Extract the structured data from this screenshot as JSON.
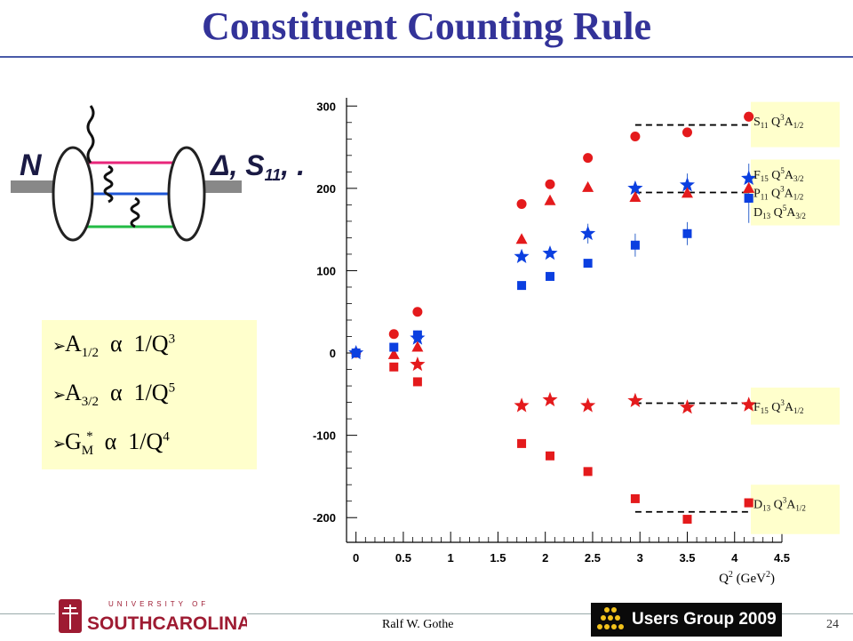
{
  "slide": {
    "title": "Constituent Counting Rule",
    "author": "Ralf W. Gothe",
    "page_number": "24",
    "users_group": "Users Group 2009",
    "logo": {
      "university_text": "UNIVERSITY OF",
      "name_text": "SOUTHCAROLINA."
    }
  },
  "diagram": {
    "left_label": "N",
    "right_label": "Δ, S",
    "right_sub": "11",
    "right_suffix": ", ..."
  },
  "formulas": [
    {
      "sym": "A",
      "sub": "1/2",
      "sup_sym": "",
      "rel": "α",
      "rhs": "1/Q",
      "pow": "3"
    },
    {
      "sym": "A",
      "sub": "3/2",
      "sup_sym": "",
      "rel": "α",
      "rhs": "1/Q",
      "pow": "5"
    },
    {
      "sym": "G",
      "sub": "M",
      "sup_sym": "*",
      "rel": "α",
      "rhs": "1/Q",
      "pow": "4"
    }
  ],
  "colors": {
    "red": "#e41a1c",
    "blue": "#0b3fe0",
    "title": "#333399",
    "box": "#ffffcc"
  },
  "chart_data": {
    "type": "scatter",
    "title": "",
    "xlabel": "Q2 (GeV2)",
    "xlim": [
      -0.1,
      4.5
    ],
    "ylim": [
      -230,
      310
    ],
    "xticks": [
      "0",
      "0.5",
      "1",
      "1.5",
      "2",
      "2.5",
      "3",
      "3.5",
      "4",
      "4.5"
    ],
    "yticks": [
      "300",
      "200",
      "100",
      "0",
      "-100",
      "-200"
    ],
    "series": [
      {
        "name": "S11 Q3A1/2",
        "color": "red",
        "marker": "circle",
        "x": [
          0,
          0.4,
          0.65,
          1.75,
          2.05,
          2.45,
          2.95,
          3.5,
          4.15
        ],
        "y": [
          0,
          23,
          50,
          181,
          205,
          237,
          263,
          268,
          287
        ]
      },
      {
        "name": "F15 Q5A3/2",
        "color": "blue",
        "marker": "star",
        "x": [
          0,
          0.65,
          1.75,
          2.05,
          2.45,
          2.95,
          3.5,
          4.15
        ],
        "y": [
          0,
          18,
          117,
          121,
          145,
          200,
          204,
          212
        ]
      },
      {
        "name": "P11 Q3A1/2",
        "color": "red",
        "marker": "triangle",
        "x": [
          0.4,
          0.65,
          1.75,
          2.05,
          2.45,
          2.95,
          3.5,
          4.15
        ],
        "y": [
          -2,
          7,
          138,
          185,
          201,
          189,
          194,
          200
        ]
      },
      {
        "name": "D13 Q5A3/2",
        "color": "blue",
        "marker": "square",
        "x": [
          0,
          0.4,
          0.65,
          1.75,
          2.05,
          2.45,
          2.95,
          3.5,
          4.15
        ],
        "y": [
          0,
          7,
          22,
          82,
          93,
          109,
          131,
          145,
          188
        ]
      },
      {
        "name": "F15 Q3A1/2",
        "color": "red",
        "marker": "star",
        "x": [
          0.65,
          1.75,
          2.05,
          2.45,
          2.95,
          3.5,
          4.15
        ],
        "y": [
          -14,
          -64,
          -57,
          -64,
          -58,
          -66,
          -63
        ]
      },
      {
        "name": "D13 Q3A1/2",
        "color": "red",
        "marker": "square",
        "x": [
          0.4,
          0.65,
          1.75,
          2.05,
          2.45,
          2.95,
          3.5,
          4.15
        ],
        "y": [
          -17,
          -35,
          -110,
          -125,
          -144,
          -177,
          -202,
          -182
        ]
      }
    ],
    "reference_lines": [
      {
        "y": 277,
        "x": [
          2.95,
          4.15
        ]
      },
      {
        "y": 195,
        "x": [
          2.95,
          4.15
        ]
      },
      {
        "y": -61,
        "x": [
          2.95,
          4.15
        ]
      },
      {
        "y": -193,
        "x": [
          2.95,
          4.15
        ]
      }
    ],
    "labels": [
      {
        "series": "S11 Q3A1/2",
        "text": "S11 Q3A1/2",
        "y": 287,
        "anchor_y": 282
      },
      {
        "series": "F15 Q5A3/2",
        "text": "F15 Q5A3/2",
        "y": 217
      },
      {
        "series": "P11 Q3A1/2",
        "text": "P11 Q3A1/2",
        "y": 195
      },
      {
        "series": "D13 Q5A3/2",
        "text": "D13 Q5A3/2",
        "y": 172
      },
      {
        "series": "F15 Q3A1/2",
        "text": "F15 Q3A1/2",
        "y": -65
      },
      {
        "series": "D13 Q3A1/2",
        "text": "D13 Q3A1/2",
        "y": -183
      }
    ]
  }
}
